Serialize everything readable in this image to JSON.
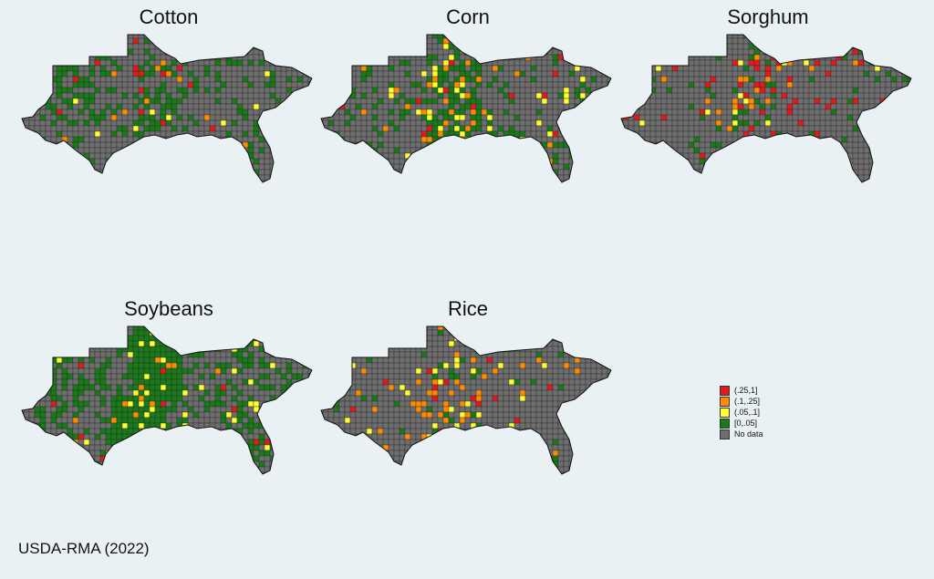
{
  "maps": [
    {
      "title": "Cotton"
    },
    {
      "title": "Corn"
    },
    {
      "title": "Sorghum"
    },
    {
      "title": "Soybeans"
    },
    {
      "title": "Rice"
    }
  ],
  "legend": {
    "items": [
      {
        "label": "(.25,1]",
        "color": "#e31a1c"
      },
      {
        "label": "(.1,.25]",
        "color": "#ff8c00"
      },
      {
        "label": "(.05,.1]",
        "color": "#ffff33"
      },
      {
        "label": "[0,.05]",
        "color": "#1a7a1a"
      },
      {
        "label": "No data",
        "color": "#6e6e6e"
      }
    ]
  },
  "source": "USDA-RMA (2022)"
}
